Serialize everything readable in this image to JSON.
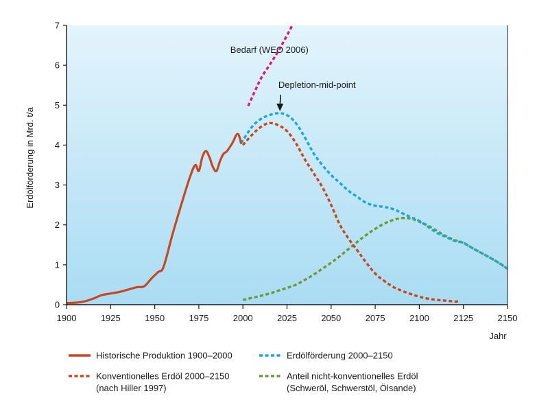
{
  "chart_data": {
    "type": "line",
    "title": "",
    "xlabel": "Jahr",
    "ylabel": "Erdölförderung in Mrd. t/a",
    "xlim": [
      1900,
      2150
    ],
    "ylim": [
      0,
      7
    ],
    "x_ticks": [
      1900,
      1925,
      1950,
      1975,
      2000,
      2025,
      2050,
      2075,
      2100,
      2125,
      2150
    ],
    "y_ticks": [
      0,
      1,
      2,
      3,
      4,
      5,
      6,
      7
    ],
    "grid": false,
    "colors": {
      "background_top": "#e3f4fc",
      "background_bottom": "#a9dcf3",
      "historic": "#c8471f",
      "conventional": "#c8471f",
      "total": "#1aa6de",
      "unconventional": "#6a9a3a",
      "demand": "#e0197a"
    },
    "series": [
      {
        "key": "historic",
        "name": "Historische Produktion 1900–2000",
        "style": "solid",
        "x": [
          1900,
          1905,
          1910,
          1915,
          1920,
          1925,
          1930,
          1935,
          1940,
          1944,
          1948,
          1952,
          1955,
          1960,
          1965,
          1970,
          1973,
          1975,
          1977,
          1979,
          1981,
          1983,
          1985,
          1987,
          1989,
          1991,
          1994,
          1997,
          1999
        ],
        "y": [
          0.04,
          0.05,
          0.08,
          0.15,
          0.24,
          0.28,
          0.32,
          0.38,
          0.44,
          0.46,
          0.65,
          0.82,
          0.95,
          1.75,
          2.5,
          3.2,
          3.5,
          3.35,
          3.7,
          3.85,
          3.7,
          3.45,
          3.35,
          3.6,
          3.78,
          3.85,
          4.05,
          4.28,
          4.05
        ]
      },
      {
        "key": "conventional",
        "name": "Konventionelles Erdöl 2000–2150",
        "name2": "(nach Hiller 1997)",
        "style": "dotted",
        "x": [
          2000,
          2005,
          2010,
          2015,
          2020,
          2025,
          2030,
          2035,
          2040,
          2045,
          2050,
          2055,
          2060,
          2065,
          2070,
          2075,
          2080,
          2085,
          2090,
          2095,
          2100,
          2105,
          2110,
          2115,
          2120,
          2122
        ],
        "y": [
          4.0,
          4.25,
          4.45,
          4.55,
          4.5,
          4.35,
          4.05,
          3.65,
          3.3,
          2.95,
          2.5,
          2.0,
          1.65,
          1.35,
          1.05,
          0.78,
          0.6,
          0.45,
          0.35,
          0.27,
          0.2,
          0.15,
          0.12,
          0.1,
          0.08,
          0.08
        ]
      },
      {
        "key": "total",
        "name": "Erdölförderung 2000–2150",
        "style": "dotted",
        "x": [
          1999,
          2005,
          2010,
          2015,
          2020,
          2025,
          2030,
          2035,
          2040,
          2045,
          2050,
          2055,
          2060,
          2065,
          2070,
          2075,
          2080,
          2085,
          2090,
          2095,
          2100,
          2105,
          2110,
          2115,
          2120,
          2125,
          2130,
          2135,
          2140,
          2145,
          2150
        ],
        "y": [
          4.05,
          4.45,
          4.65,
          4.75,
          4.8,
          4.75,
          4.55,
          4.2,
          3.8,
          3.5,
          3.25,
          3.05,
          2.85,
          2.7,
          2.55,
          2.48,
          2.45,
          2.4,
          2.3,
          2.2,
          2.1,
          1.95,
          1.8,
          1.7,
          1.6,
          1.55,
          1.42,
          1.3,
          1.18,
          1.05,
          0.9
        ]
      },
      {
        "key": "unconventional",
        "name": "Anteil nicht-konventionelles Erdöl",
        "name2": "(Schweröl, Schwerstöl, Ölsande)",
        "style": "dotted",
        "x": [
          2000,
          2005,
          2010,
          2015,
          2020,
          2025,
          2030,
          2035,
          2040,
          2045,
          2050,
          2055,
          2060,
          2065,
          2070,
          2075,
          2080,
          2085,
          2090,
          2095,
          2100,
          2105,
          2110,
          2115,
          2120,
          2125,
          2130,
          2135,
          2140,
          2145,
          2150
        ],
        "y": [
          0.12,
          0.17,
          0.22,
          0.28,
          0.35,
          0.42,
          0.5,
          0.62,
          0.75,
          0.9,
          1.05,
          1.22,
          1.4,
          1.58,
          1.75,
          1.9,
          2.03,
          2.12,
          2.17,
          2.16,
          2.08,
          1.98,
          1.85,
          1.72,
          1.62,
          1.55,
          1.42,
          1.3,
          1.18,
          1.05,
          0.9
        ]
      },
      {
        "key": "demand",
        "name": "Bedarf (WEO 2006)",
        "style": "dotted",
        "x": [
          2003,
          2010,
          2015,
          2020,
          2025,
          2028
        ],
        "y": [
          4.98,
          5.65,
          6.0,
          6.35,
          6.75,
          7.0
        ]
      }
    ],
    "annotations": [
      {
        "text": "Bedarf (WEO 2006)",
        "x": 2015,
        "y": 6.38
      },
      {
        "text": "Depletion-mid-point",
        "x": 2042,
        "y": 5.5,
        "arrow_to": [
          2021,
          4.85
        ]
      }
    ]
  },
  "legend": {
    "items": [
      {
        "label": "Historische Produktion 1900–2000",
        "label2": "",
        "color": "#c8471f",
        "style": "solid"
      },
      {
        "label": "Erdölförderung 2000–2150",
        "label2": "",
        "color": "#1aa6de",
        "style": "dotted"
      },
      {
        "label": "Konventionelles Erdöl 2000–2150",
        "label2": "(nach Hiller 1997)",
        "color": "#c8471f",
        "style": "dotted"
      },
      {
        "label": "Anteil nicht-konventionelles Erdöl",
        "label2": "(Schweröl, Schwerstöl, Ölsande)",
        "color": "#6a9a3a",
        "style": "dotted"
      }
    ]
  }
}
